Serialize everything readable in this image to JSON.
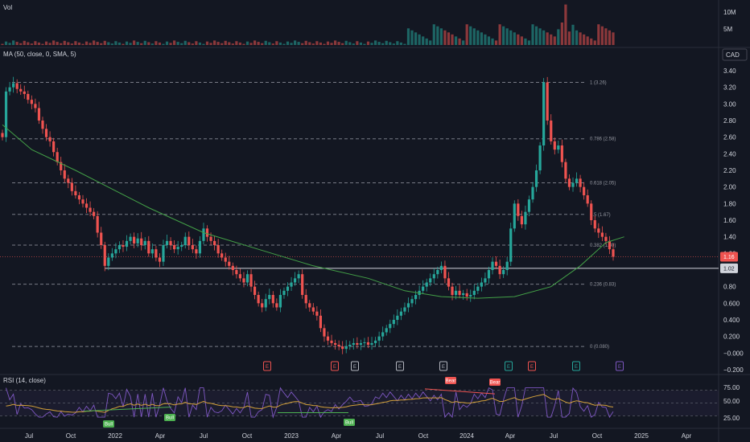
{
  "panes": {
    "volume": {
      "title": "Vol",
      "axis_labels": [
        "10M",
        "5M"
      ]
    },
    "price": {
      "title": "MA (50, close, 0, SMA, 5)",
      "currency": "CAD",
      "axis_labels": [
        "3.40",
        "3.20",
        "3.00",
        "2.80",
        "2.60",
        "2.40",
        "2.20",
        "2.00",
        "1.80",
        "1.60",
        "1.40",
        "1.20",
        "1.00",
        "0.80",
        "0.600",
        "0.400",
        "0.200",
        "−0.000",
        "−0.200"
      ],
      "current_price_tag": "1.16",
      "level_tag": "1.02"
    },
    "rsi": {
      "title": "RSI (14, close)",
      "axis_labels": [
        "75.00",
        "50.00",
        "25.00"
      ]
    }
  },
  "x_axis_labels": [
    "Jul",
    "Oct",
    "2022",
    "Apr",
    "Jul",
    "Oct",
    "2023",
    "Apr",
    "Jul",
    "Oct",
    "2024",
    "Apr",
    "Jul",
    "Oct",
    "2025",
    "Apr"
  ],
  "earnings_markers": [
    "E",
    "E",
    "E",
    "E",
    "E",
    "E",
    "E",
    "E",
    "E"
  ],
  "rsi_signals": [
    "Bull",
    "Bull",
    "Bull",
    "Bear",
    "Bear"
  ],
  "colors": {
    "background": "#131722",
    "up": "#26a69a",
    "down": "#ef5350",
    "ma": "#43a047",
    "rsi": "#7e57c2",
    "rsi_ma": "#d4a13a",
    "grid": "#2a2e39",
    "fib": "#787b86",
    "signal_bull": "#4caf50",
    "signal_bear": "#ef5350"
  },
  "chart_data": {
    "type": "candlestick",
    "timeframe": "weekly",
    "y_range": [
      -0.2,
      3.4
    ],
    "series": [
      {
        "name": "Price",
        "type": "candlestick",
        "weekly_close_approx": [
          2.6,
          3.15,
          3.2,
          3.25,
          3.18,
          3.15,
          3.12,
          3.05,
          3.0,
          2.95,
          2.8,
          2.7,
          2.6,
          2.55,
          2.42,
          2.3,
          2.2,
          2.1,
          2.05,
          1.95,
          1.9,
          1.85,
          1.8,
          1.75,
          1.7,
          1.65,
          1.45,
          1.3,
          1.05,
          1.15,
          1.2,
          1.25,
          1.3,
          1.28,
          1.35,
          1.4,
          1.32,
          1.38,
          1.3,
          1.35,
          1.2,
          1.25,
          1.15,
          1.1,
          1.3,
          1.35,
          1.3,
          1.25,
          1.28,
          1.3,
          1.4,
          1.3,
          1.25,
          1.2,
          1.35,
          1.5,
          1.4,
          1.35,
          1.3,
          1.2,
          1.15,
          1.1,
          1.05,
          1.0,
          0.95,
          0.9,
          0.85,
          0.95,
          0.8,
          0.7,
          0.6,
          0.55,
          0.65,
          0.7,
          0.6,
          0.55,
          0.7,
          0.75,
          0.8,
          0.85,
          0.9,
          0.95,
          0.7,
          0.6,
          0.55,
          0.5,
          0.45,
          0.3,
          0.2,
          0.15,
          0.12,
          0.1,
          0.08,
          0.05,
          0.08,
          0.1,
          0.12,
          0.1,
          0.12,
          0.13,
          0.1,
          0.12,
          0.15,
          0.2,
          0.25,
          0.3,
          0.35,
          0.4,
          0.45,
          0.5,
          0.55,
          0.6,
          0.65,
          0.7,
          0.75,
          0.8,
          0.85,
          0.9,
          0.95,
          1.0,
          1.05,
          0.9,
          0.8,
          0.7,
          0.75,
          0.7,
          0.72,
          0.68,
          0.7,
          0.75,
          0.8,
          0.85,
          0.9,
          1.0,
          1.1,
          1.05,
          0.95,
          1.0,
          1.1,
          1.5,
          1.8,
          1.65,
          1.55,
          1.7,
          1.85,
          2.0,
          2.2,
          2.5,
          3.26,
          2.8,
          2.55,
          2.45,
          2.5,
          2.3,
          2.1,
          2.0,
          2.05,
          2.1,
          2.0,
          1.9,
          1.8,
          1.6,
          1.5,
          1.45,
          1.4,
          1.35,
          1.25,
          1.16
        ]
      },
      {
        "name": "MA (50)",
        "type": "line",
        "points": [
          [
            0,
            2.75
          ],
          [
            8,
            2.45
          ],
          [
            20,
            2.2
          ],
          [
            40,
            1.75
          ],
          [
            55,
            1.45
          ],
          [
            70,
            1.25
          ],
          [
            85,
            1.05
          ],
          [
            100,
            0.9
          ],
          [
            110,
            0.75
          ],
          [
            120,
            0.68
          ],
          [
            130,
            0.66
          ],
          [
            140,
            0.68
          ],
          [
            150,
            0.8
          ],
          [
            158,
            1.05
          ],
          [
            165,
            1.33
          ],
          [
            170,
            1.4
          ]
        ]
      },
      {
        "name": "RSI (14, close)",
        "type": "line",
        "y_range": [
          0,
          100
        ]
      }
    ],
    "volume": {
      "axis_labels": [
        "10M",
        "5M"
      ]
    },
    "fibonacci_levels": [
      {
        "ratio": "1",
        "price": 3.26,
        "label": "1 (3.26)"
      },
      {
        "ratio": "0.786",
        "price": 2.58,
        "label": "0.786 (2.58)"
      },
      {
        "ratio": "0.618",
        "price": 2.05,
        "label": "0.618 (2.05)"
      },
      {
        "ratio": "0.5",
        "price": 1.67,
        "label": "0.5 (1.67)"
      },
      {
        "ratio": "0.382",
        "price": 1.3,
        "label": "0.382 (1.30)"
      },
      {
        "ratio": "0.236",
        "price": 0.83,
        "label": "0.236 (0.83)"
      },
      {
        "ratio": "0",
        "price": 0.08,
        "label": "0 (0.080)"
      }
    ],
    "horizontal_line": 1.02,
    "last_price": 1.16,
    "rsi_levels": [
      75,
      50,
      25
    ]
  }
}
